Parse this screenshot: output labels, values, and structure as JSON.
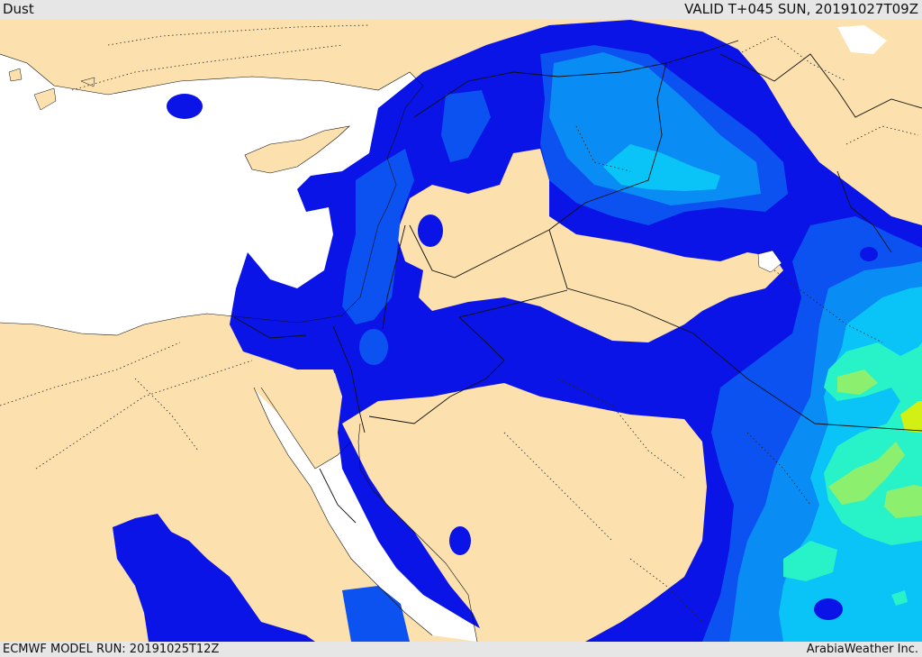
{
  "header": {
    "field_name": "Dust",
    "valid_time": "VALID T+045 SUN, 20191027T09Z"
  },
  "footer": {
    "model_run": "ECMWF MODEL RUN: 20191025T12Z",
    "credit": "ArabiaWeather Inc."
  },
  "colors": {
    "land": "#fce0ad",
    "sea": "#ffffff",
    "level1": "#0a14e6",
    "level2": "#0b52f0",
    "level3": "#0a8cf5",
    "level4": "#0ac4f8",
    "level5": "#28f2c8",
    "level6": "#8cf06e",
    "level7": "#d2f014",
    "border": "#111111"
  }
}
